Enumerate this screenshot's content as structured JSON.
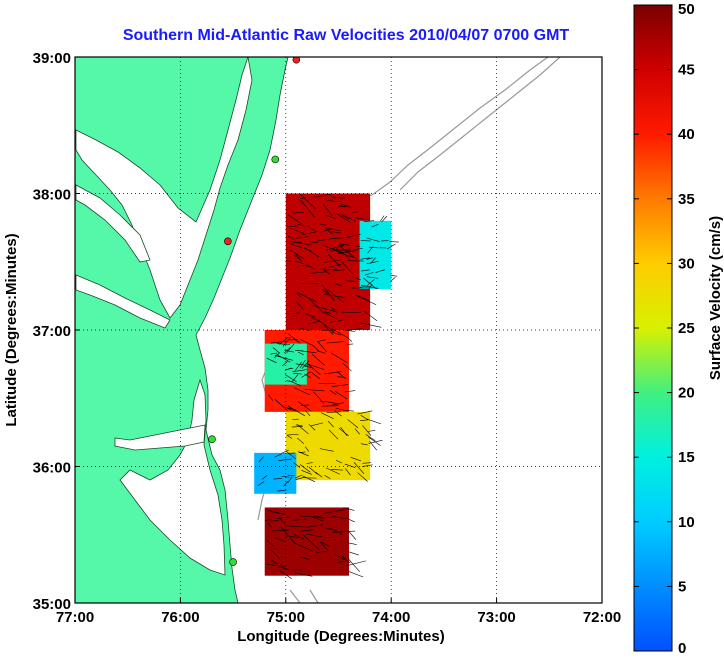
{
  "title": "Southern Mid-Atlantic Raw Velocities 2010/04/07 0700 GMT",
  "axes": {
    "xlabel": "Longitude (Degrees:Minutes)",
    "ylabel": "Latitude (Degrees:Minutes)",
    "x_ticks": [
      "77:00",
      "76:00",
      "75:00",
      "74:00",
      "73:00",
      "72:00"
    ],
    "y_ticks": [
      "39:00",
      "38:00",
      "37:00",
      "36:00",
      "35:00"
    ]
  },
  "colorbar": {
    "label": "Surface Velocity (cm/s)",
    "ticks": [
      "50",
      "45",
      "40",
      "35",
      "30",
      "25",
      "20",
      "15",
      "10",
      "5",
      "0"
    ]
  },
  "colors": {
    "land": "#55f8a8",
    "title": "#1a1aff",
    "station_green": "#33dd33",
    "station_red": "#ee2222"
  },
  "chart_data": {
    "type": "heatmap",
    "title": "Southern Mid-Atlantic Raw Velocities 2010/04/07 0700 GMT",
    "xlabel": "Longitude (Degrees:Minutes)",
    "ylabel": "Latitude (Degrees:Minutes)",
    "colorbar_label": "Surface Velocity (cm/s)",
    "xlim": [
      -77.0,
      -72.0
    ],
    "ylim": [
      35.0,
      39.0
    ],
    "clim": [
      0,
      50
    ],
    "grid": true,
    "regions": [
      {
        "lon": [
          -75.0,
          -74.2
        ],
        "lat": [
          37.0,
          38.0
        ],
        "speed": 46
      },
      {
        "lon": [
          -74.3,
          -74.0
        ],
        "lat": [
          37.3,
          37.8
        ],
        "speed": 14
      },
      {
        "lon": [
          -75.2,
          -74.4
        ],
        "lat": [
          36.4,
          37.0
        ],
        "speed": 40
      },
      {
        "lon": [
          -75.2,
          -74.8
        ],
        "lat": [
          36.6,
          36.9
        ],
        "speed": 18
      },
      {
        "lon": [
          -75.0,
          -74.2
        ],
        "lat": [
          35.9,
          36.4
        ],
        "speed": 28
      },
      {
        "lon": [
          -75.3,
          -74.9
        ],
        "lat": [
          35.8,
          36.1
        ],
        "speed": 8
      },
      {
        "lon": [
          -75.2,
          -74.4
        ],
        "lat": [
          35.2,
          35.7
        ],
        "speed": 48
      }
    ],
    "stations": [
      {
        "lon": -74.9,
        "lat": 38.98,
        "color": "red"
      },
      {
        "lon": -75.1,
        "lat": 38.25,
        "color": "green"
      },
      {
        "lon": -75.55,
        "lat": 37.65,
        "color": "red"
      },
      {
        "lon": -75.7,
        "lat": 36.2,
        "color": "green"
      },
      {
        "lon": -75.5,
        "lat": 35.3,
        "color": "green"
      }
    ]
  }
}
